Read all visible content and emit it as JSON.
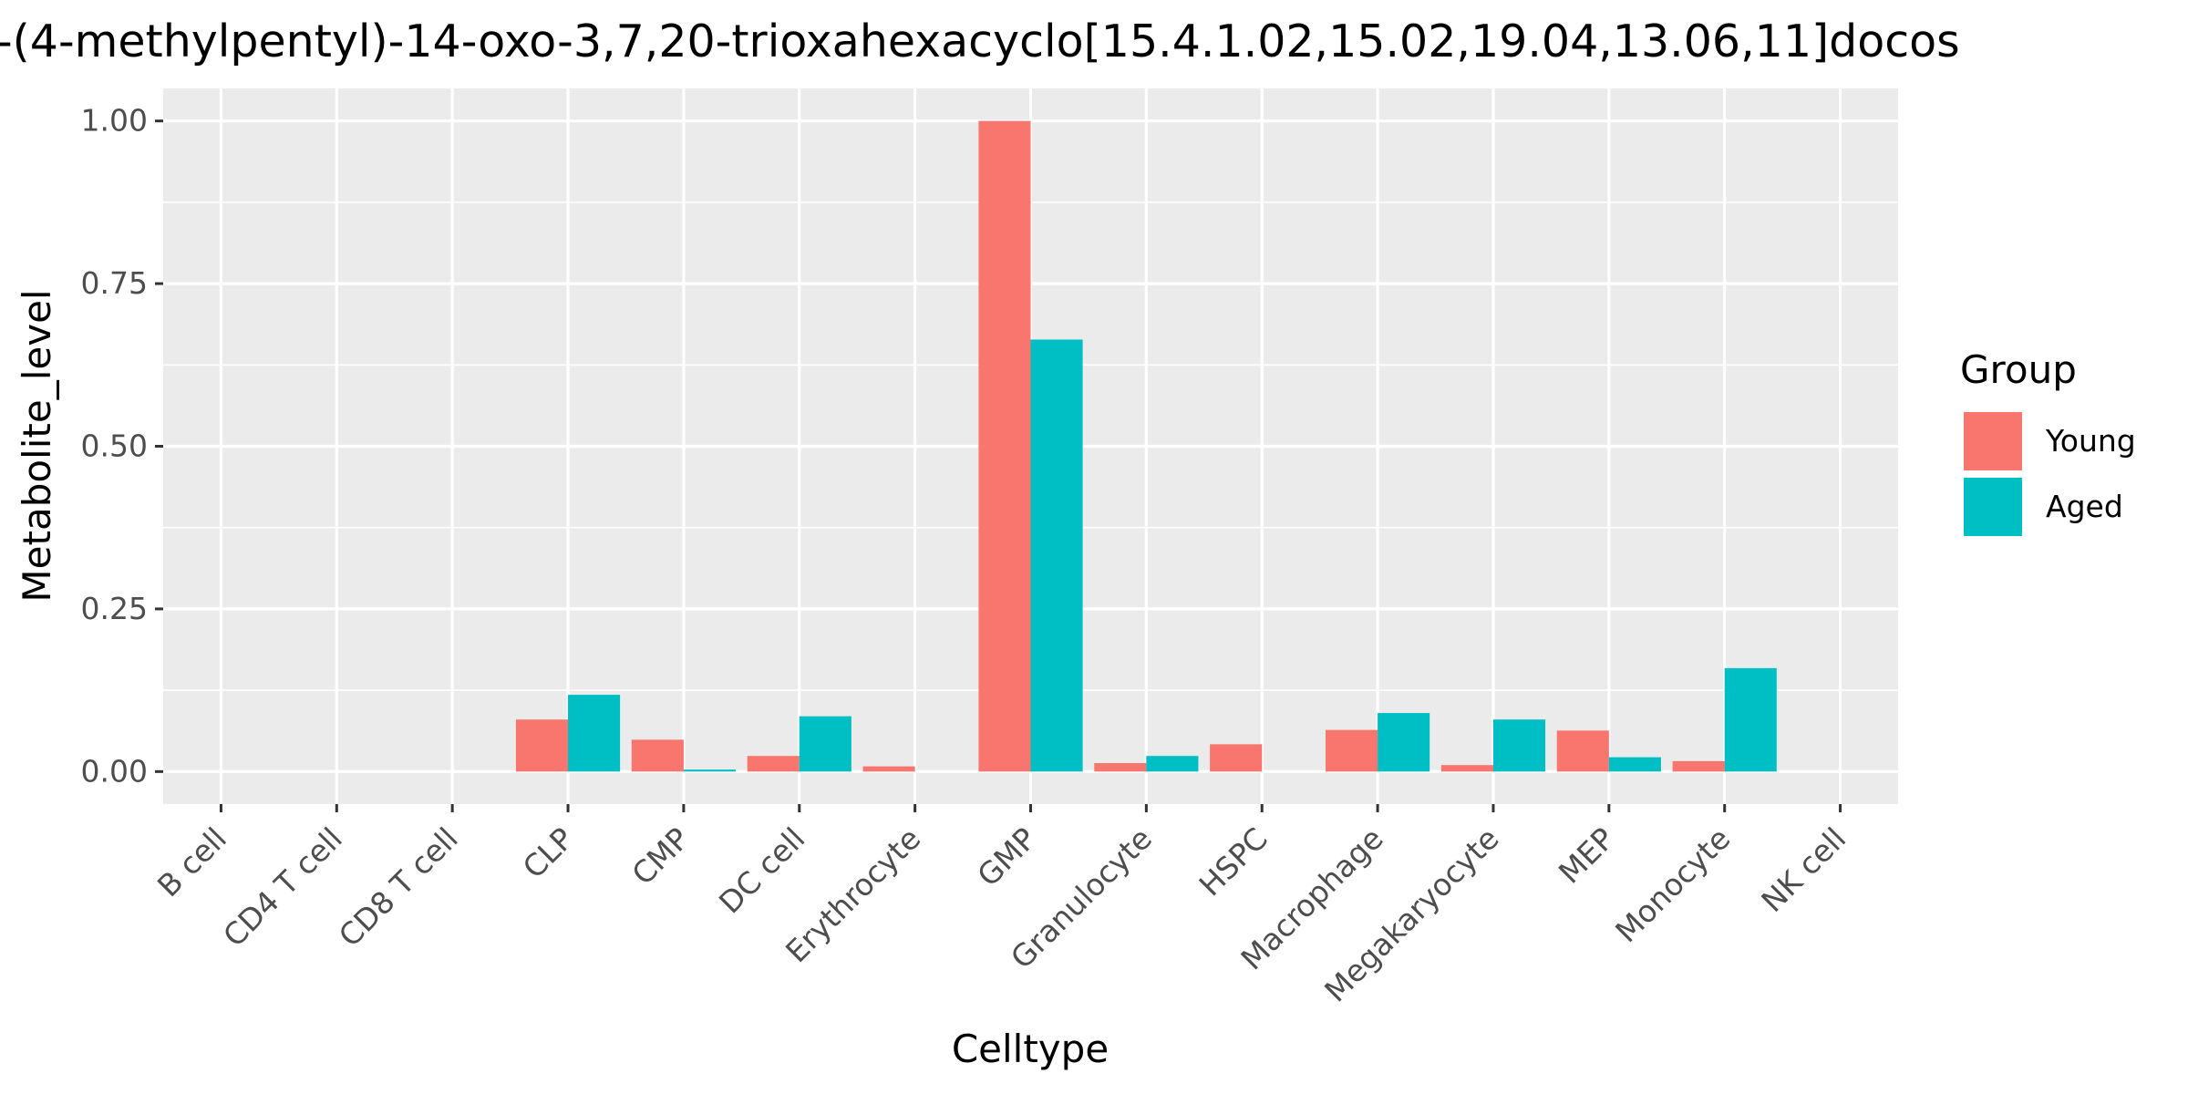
{
  "chart_data": {
    "type": "bar",
    "title": "-(4-methylpentyl)-14-oxo-3,7,20-trioxahexacyclo[15.4.1.02,15.02,19.04,13.06,11]docos",
    "xlabel": "Celltype",
    "ylabel": "Metabolite_level",
    "categories": [
      "B cell",
      "CD4 T cell",
      "CD8 T cell",
      "CLP",
      "CMP",
      "DC cell",
      "Erythrocyte",
      "GMP",
      "Granulocyte",
      "HSPC",
      "Macrophage",
      "Megakaryocyte",
      "MEP",
      "Monocyte",
      "NK cell"
    ],
    "series": [
      {
        "name": "Young",
        "color": "#F8766D",
        "values": [
          0,
          0,
          0,
          0.08,
          0.049,
          0.024,
          0.008,
          1.0,
          0.013,
          0.042,
          0.064,
          0.01,
          0.063,
          0.016,
          0
        ]
      },
      {
        "name": "Aged",
        "color": "#00BFC4",
        "values": [
          0,
          0,
          0,
          0.118,
          0.003,
          0.085,
          0,
          0.664,
          0.024,
          0,
          0.09,
          0.08,
          0.022,
          0.159,
          0
        ]
      }
    ],
    "ylim": [
      -0.05,
      1.05
    ],
    "yticks": [
      0.0,
      0.25,
      0.5,
      0.75,
      1.0
    ],
    "yticklabels": [
      "0.00",
      "0.25",
      "0.50",
      "0.75",
      "1.00"
    ],
    "legend": {
      "title": "Group",
      "position": "right"
    },
    "grid": true,
    "panel_background": "#EBEBEB"
  }
}
